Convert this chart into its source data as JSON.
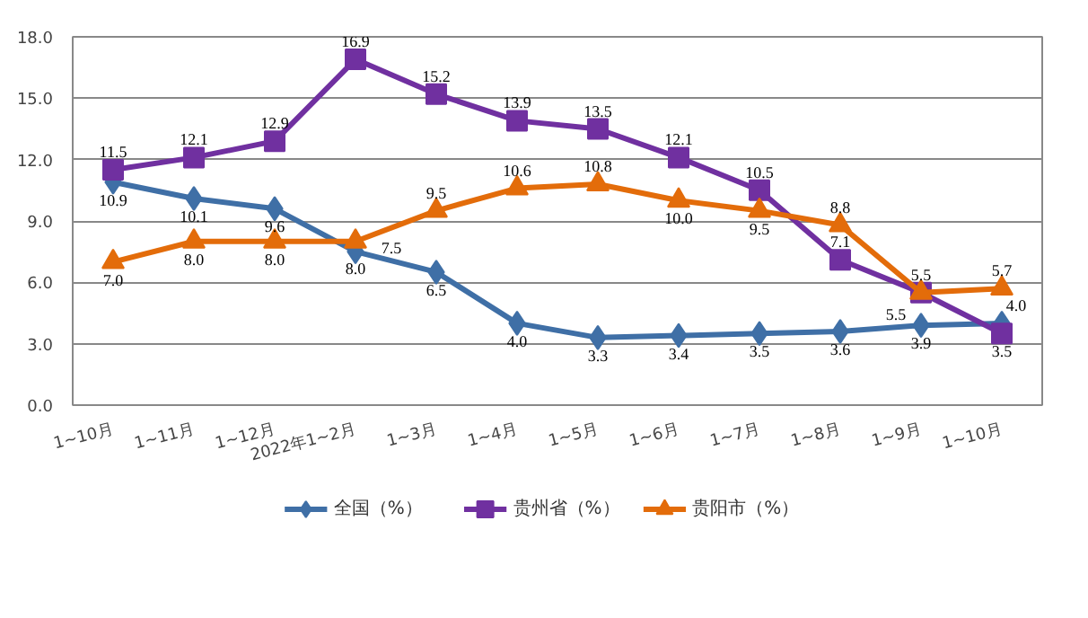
{
  "chart_data": {
    "type": "line",
    "categories": [
      "1~10月",
      "1~11月",
      "1~12月",
      "2022年1~2月",
      "1~3月",
      "1~4月",
      "1~5月",
      "1~6月",
      "1~7月",
      "1~8月",
      "1~9月",
      "1~10月"
    ],
    "series": [
      {
        "name": "全国（%）",
        "color": "#3f6fa6",
        "marker": "diamond",
        "values": [
          10.9,
          10.1,
          9.6,
          7.5,
          6.5,
          4.0,
          3.3,
          3.4,
          3.5,
          3.6,
          3.9,
          4.0
        ],
        "value_labels": [
          "10.9",
          "10.1",
          "9.6",
          "7.5",
          "6.5",
          "4.0",
          "3.3",
          "3.4",
          "3.5",
          "3.6",
          "3.9",
          "4.0"
        ]
      },
      {
        "name": "贵州省（%）",
        "color": "#7030a0",
        "marker": "square",
        "values": [
          11.5,
          12.1,
          12.9,
          16.9,
          15.2,
          13.9,
          13.5,
          12.1,
          10.5,
          7.1,
          5.5,
          3.5
        ],
        "value_labels": [
          "11.5",
          "12.1",
          "12.9",
          "16.9",
          "15.2",
          "13.9",
          "13.5",
          "12.1",
          "10.5",
          "7.1",
          "5.5",
          "3.5"
        ]
      },
      {
        "name": "贵阳市（%）",
        "color": "#e36c0a",
        "marker": "triangle",
        "values": [
          7.0,
          8.0,
          8.0,
          8.0,
          9.5,
          10.6,
          10.8,
          10.0,
          9.5,
          8.8,
          5.5,
          5.7
        ],
        "value_labels": [
          "7.0",
          "8.0",
          "8.0",
          "8.0",
          "9.5",
          "10.6",
          "10.8",
          "10.0",
          "9.5",
          "8.8",
          "5.5",
          "5.7"
        ]
      }
    ],
    "ylim": [
      0,
      18
    ],
    "yticks": [
      {
        "value": 0,
        "label": "0.0"
      },
      {
        "value": 3,
        "label": "3.0"
      },
      {
        "value": 6,
        "label": "6.0"
      },
      {
        "value": 9,
        "label": "9.0"
      },
      {
        "value": 12,
        "label": "12.0"
      },
      {
        "value": 15,
        "label": "15.0"
      },
      {
        "value": 18,
        "label": "18.0"
      }
    ],
    "grid": "y",
    "legend": "bottom",
    "line_style": "solid"
  }
}
